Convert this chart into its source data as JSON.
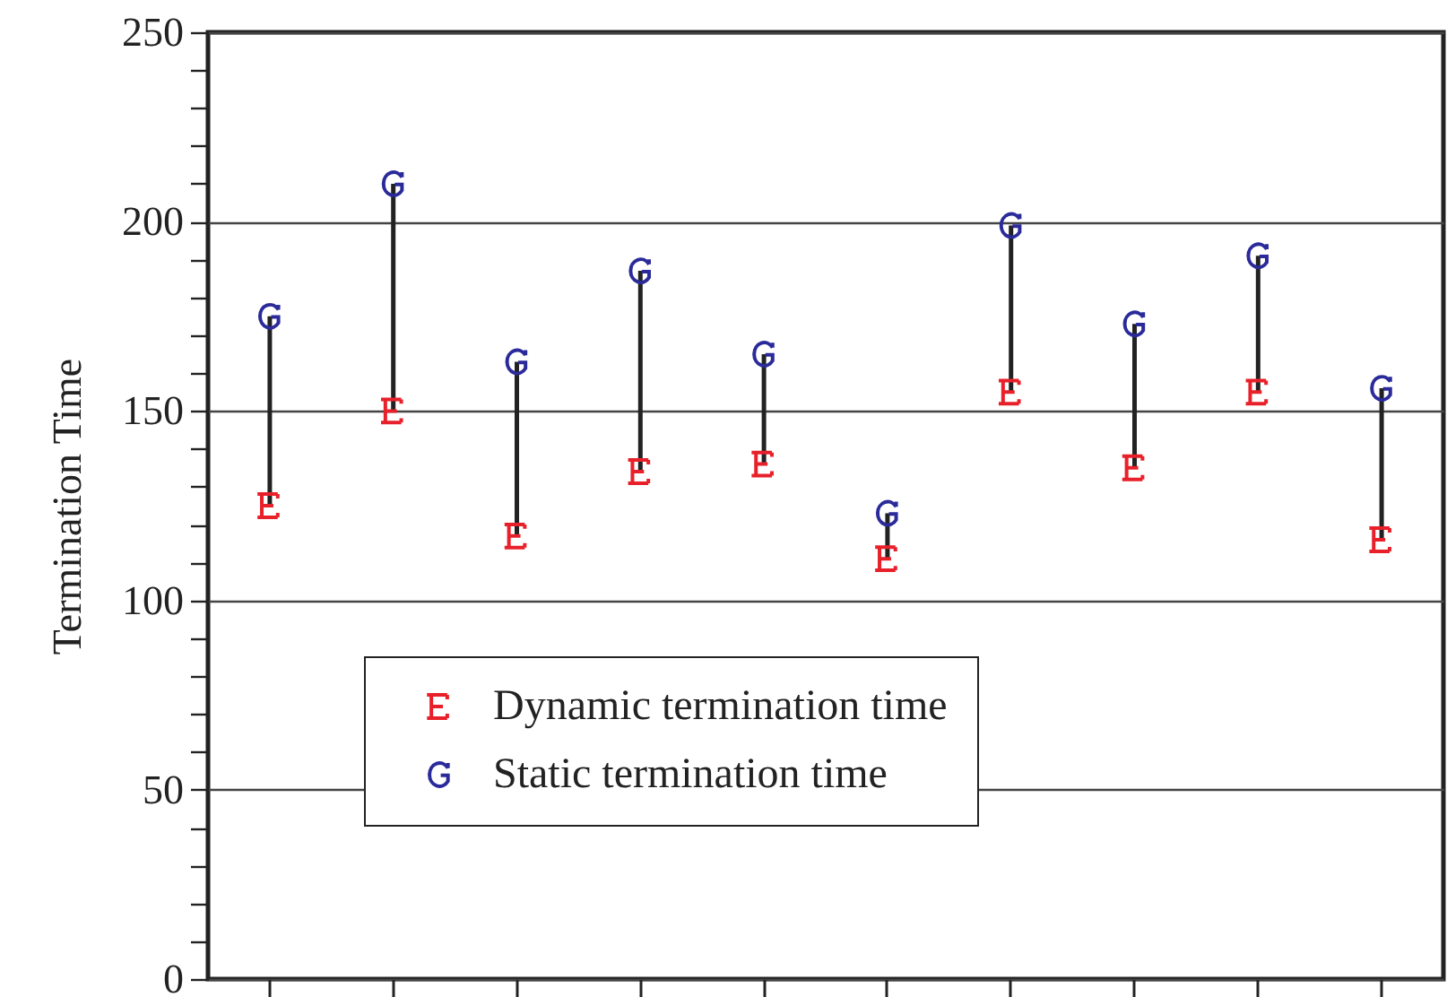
{
  "chart_data": {
    "type": "scatter",
    "ylabel": "Termination Time",
    "categories": [
      null,
      null,
      null,
      null,
      null,
      null,
      null,
      null,
      null,
      null
    ],
    "series": [
      {
        "name": "Dynamic termination time",
        "color": "#e8202a",
        "values": [
          125,
          150,
          117,
          134,
          136,
          111,
          155,
          135,
          155,
          116
        ]
      },
      {
        "name": "Static termination time",
        "color": "#2a2a9a",
        "values": [
          175,
          210,
          163,
          187,
          165,
          123,
          199,
          173,
          191,
          156
        ]
      }
    ],
    "ylim": [
      0,
      250
    ],
    "yticks": [
      0,
      {
        "value": 10,
        "label": null
      },
      {
        "value": 20,
        "label": null
      },
      {
        "value": 30,
        "label": null
      },
      {
        "value": 40,
        "label": null
      },
      50,
      {
        "value": 60,
        "label": null
      },
      {
        "value": 70,
        "label": null
      },
      {
        "value": 80,
        "label": null
      },
      {
        "value": 90,
        "label": null
      },
      100,
      {
        "value": 110,
        "label": null
      },
      {
        "value": 120,
        "label": null
      },
      {
        "value": 130,
        "label": null
      },
      {
        "value": 140,
        "label": null
      },
      150,
      {
        "value": 160,
        "label": null
      },
      {
        "value": 170,
        "label": null
      },
      {
        "value": 180,
        "label": null
      },
      {
        "value": 190,
        "label": null
      },
      200,
      {
        "value": 210,
        "label": null
      },
      {
        "value": 220,
        "label": null
      },
      {
        "value": 230,
        "label": null
      },
      {
        "value": 240,
        "label": null
      },
      250
    ],
    "grid": "y",
    "legend": "bottom left",
    "tick_labels": "y"
  }
}
